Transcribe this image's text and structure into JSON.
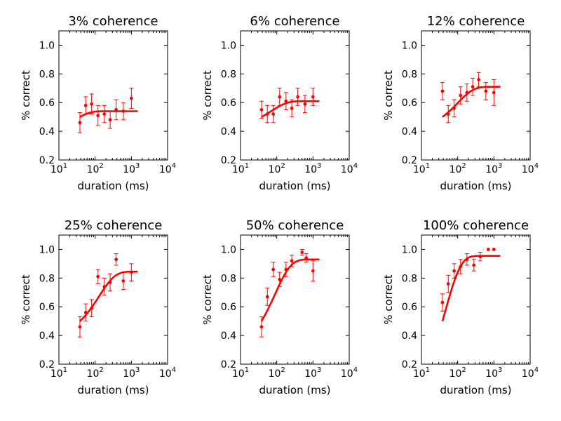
{
  "figure": {
    "xlabel": "duration (ms)",
    "ylabel": "% correct",
    "x_tick_labels": [
      "10^1",
      "10^2",
      "10^3",
      "10^4"
    ],
    "y_tick_labels": [
      "0.2",
      "0.4",
      "0.6",
      "0.8",
      "1.0"
    ],
    "series_color": "#ff0000"
  },
  "chart_data": [
    {
      "type": "scatter",
      "title": "3% coherence",
      "xlabel": "duration (ms)",
      "ylabel": "% correct",
      "xscale": "log",
      "xlim": [
        10,
        10000
      ],
      "ylim": [
        0.2,
        1.1
      ],
      "points": [
        {
          "x": 38,
          "y": 0.46,
          "err": 0.07
        },
        {
          "x": 55,
          "y": 0.58,
          "err": 0.06
        },
        {
          "x": 80,
          "y": 0.59,
          "err": 0.07
        },
        {
          "x": 120,
          "y": 0.51,
          "err": 0.07
        },
        {
          "x": 180,
          "y": 0.52,
          "err": 0.06
        },
        {
          "x": 260,
          "y": 0.48,
          "err": 0.06
        },
        {
          "x": 380,
          "y": 0.55,
          "err": 0.07
        },
        {
          "x": 600,
          "y": 0.54,
          "err": 0.06
        },
        {
          "x": 1000,
          "y": 0.63,
          "err": 0.07
        }
      ],
      "fit": {
        "min": 0.5,
        "max": 0.54,
        "tau": 25,
        "x_range": [
          38,
          1500
        ]
      }
    },
    {
      "type": "scatter",
      "title": "6% coherence",
      "xlabel": "duration (ms)",
      "ylabel": "% correct",
      "xscale": "log",
      "xlim": [
        10,
        10000
      ],
      "ylim": [
        0.2,
        1.1
      ],
      "points": [
        {
          "x": 38,
          "y": 0.55,
          "err": 0.06
        },
        {
          "x": 55,
          "y": 0.52,
          "err": 0.06
        },
        {
          "x": 80,
          "y": 0.52,
          "err": 0.06
        },
        {
          "x": 120,
          "y": 0.64,
          "err": 0.06
        },
        {
          "x": 180,
          "y": 0.61,
          "err": 0.06
        },
        {
          "x": 260,
          "y": 0.56,
          "err": 0.06
        },
        {
          "x": 380,
          "y": 0.64,
          "err": 0.06
        },
        {
          "x": 600,
          "y": 0.59,
          "err": 0.06
        },
        {
          "x": 1000,
          "y": 0.64,
          "err": 0.06
        }
      ],
      "fit": {
        "min": 0.5,
        "max": 0.61,
        "tau": 70,
        "x_range": [
          38,
          1500
        ]
      }
    },
    {
      "type": "scatter",
      "title": "12% coherence",
      "xlabel": "duration (ms)",
      "ylabel": "% correct",
      "xscale": "log",
      "xlim": [
        10,
        10000
      ],
      "ylim": [
        0.2,
        1.1
      ],
      "points": [
        {
          "x": 38,
          "y": 0.68,
          "err": 0.06
        },
        {
          "x": 55,
          "y": 0.52,
          "err": 0.06
        },
        {
          "x": 80,
          "y": 0.56,
          "err": 0.06
        },
        {
          "x": 120,
          "y": 0.65,
          "err": 0.06
        },
        {
          "x": 180,
          "y": 0.67,
          "err": 0.06
        },
        {
          "x": 260,
          "y": 0.71,
          "err": 0.06
        },
        {
          "x": 380,
          "y": 0.76,
          "err": 0.05
        },
        {
          "x": 600,
          "y": 0.68,
          "err": 0.06
        },
        {
          "x": 1000,
          "y": 0.67,
          "err": 0.09
        }
      ],
      "fit": {
        "min": 0.5,
        "max": 0.71,
        "tau": 100,
        "x_range": [
          38,
          1500
        ]
      }
    },
    {
      "type": "scatter",
      "title": "25% coherence",
      "xlabel": "duration (ms)",
      "ylabel": "% correct",
      "xscale": "log",
      "xlim": [
        10,
        10000
      ],
      "ylim": [
        0.2,
        1.1
      ],
      "points": [
        {
          "x": 38,
          "y": 0.46,
          "err": 0.07
        },
        {
          "x": 55,
          "y": 0.56,
          "err": 0.06
        },
        {
          "x": 80,
          "y": 0.59,
          "err": 0.06
        },
        {
          "x": 120,
          "y": 0.81,
          "err": 0.05
        },
        {
          "x": 180,
          "y": 0.74,
          "err": 0.06
        },
        {
          "x": 260,
          "y": 0.77,
          "err": 0.06
        },
        {
          "x": 380,
          "y": 0.93,
          "err": 0.04
        },
        {
          "x": 600,
          "y": 0.78,
          "err": 0.06
        },
        {
          "x": 1000,
          "y": 0.84,
          "err": 0.06
        }
      ],
      "fit": {
        "min": 0.5,
        "max": 0.845,
        "tau": 130,
        "x_range": [
          38,
          1500
        ]
      }
    },
    {
      "type": "scatter",
      "title": "50% coherence",
      "xlabel": "duration (ms)",
      "ylabel": "% correct",
      "xscale": "log",
      "xlim": [
        10,
        10000
      ],
      "ylim": [
        0.2,
        1.1
      ],
      "points": [
        {
          "x": 38,
          "y": 0.46,
          "err": 0.07
        },
        {
          "x": 55,
          "y": 0.67,
          "err": 0.06
        },
        {
          "x": 80,
          "y": 0.86,
          "err": 0.05
        },
        {
          "x": 120,
          "y": 0.79,
          "err": 0.05
        },
        {
          "x": 180,
          "y": 0.86,
          "err": 0.05
        },
        {
          "x": 260,
          "y": 0.92,
          "err": 0.04
        },
        {
          "x": 500,
          "y": 0.98,
          "err": 0.02
        },
        {
          "x": 650,
          "y": 0.94,
          "err": 0.03
        },
        {
          "x": 1000,
          "y": 0.85,
          "err": 0.07
        }
      ],
      "fit": {
        "min": 0.5,
        "max": 0.93,
        "tau": 90,
        "x_range": [
          38,
          1500
        ]
      }
    },
    {
      "type": "scatter",
      "title": "100% coherence",
      "xlabel": "duration (ms)",
      "ylabel": "% correct",
      "xscale": "log",
      "xlim": [
        10,
        10000
      ],
      "ylim": [
        0.2,
        1.1
      ],
      "points": [
        {
          "x": 38,
          "y": 0.63,
          "err": 0.06
        },
        {
          "x": 55,
          "y": 0.76,
          "err": 0.06
        },
        {
          "x": 80,
          "y": 0.85,
          "err": 0.05
        },
        {
          "x": 120,
          "y": 0.88,
          "err": 0.05
        },
        {
          "x": 180,
          "y": 0.93,
          "err": 0.04
        },
        {
          "x": 280,
          "y": 0.89,
          "err": 0.04
        },
        {
          "x": 420,
          "y": 0.95,
          "err": 0.03
        },
        {
          "x": 700,
          "y": 1.0,
          "err": 0.0
        },
        {
          "x": 1000,
          "y": 1.0,
          "err": 0.0
        }
      ],
      "fit": {
        "min": 0.5,
        "max": 0.955,
        "tau": 45,
        "x_range": [
          38,
          1500
        ]
      }
    }
  ]
}
